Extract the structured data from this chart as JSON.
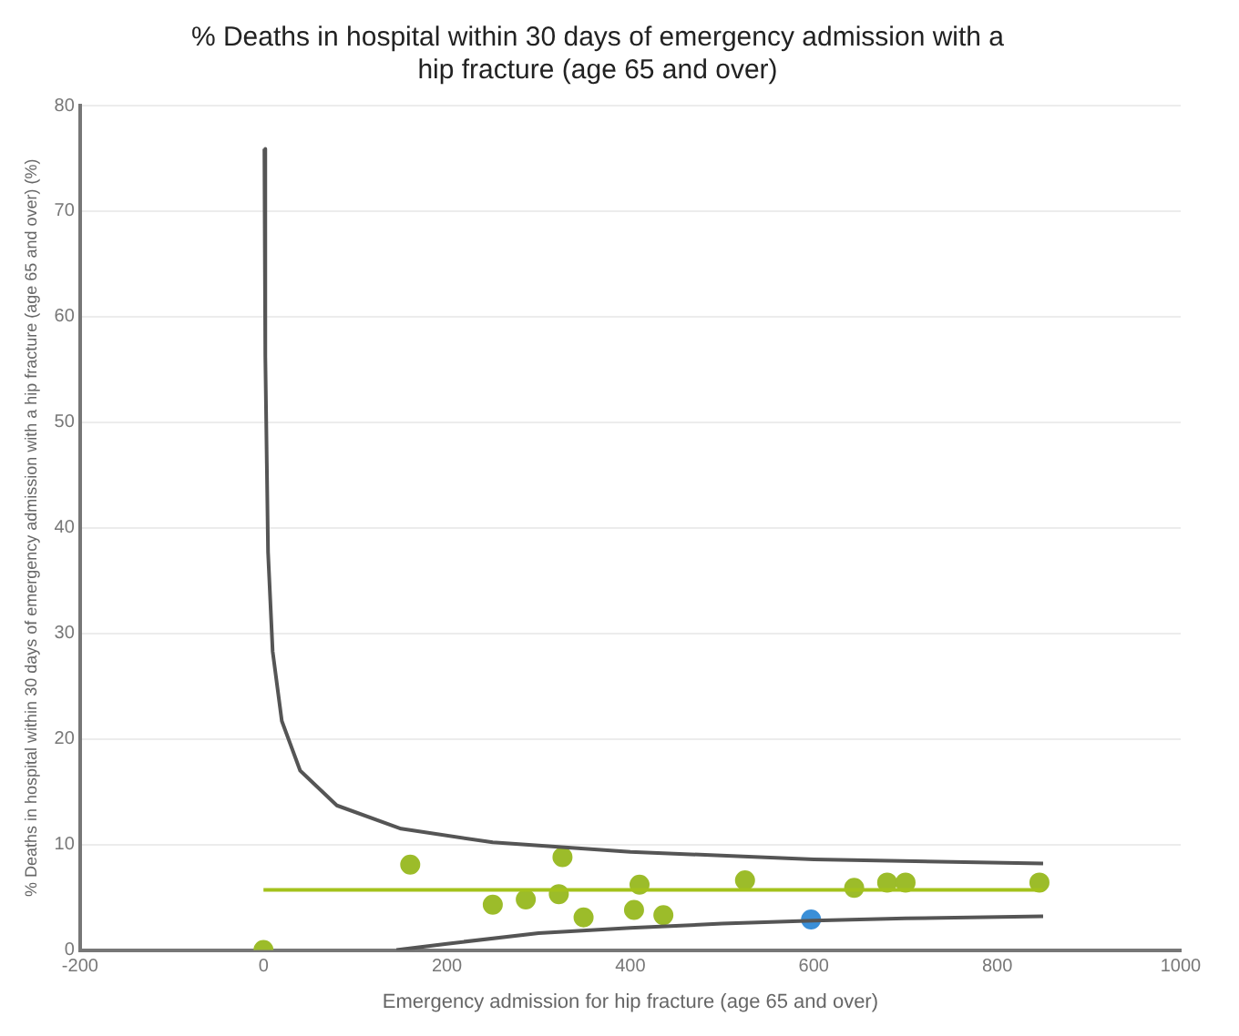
{
  "chart_data": {
    "type": "scatter",
    "title": "% Deaths in hospital within 30 days of emergency admission with a hip fracture (age 65 and over)",
    "xlabel": "Emergency admission for hip fracture (age 65 and over)",
    "ylabel": "% Deaths in hospital within 30 days of emergency admission with a hip fracture (age 65 and over) (%)",
    "xlim": [
      -200,
      1000
    ],
    "xticks": [
      -200,
      0,
      200,
      400,
      600,
      800,
      1000
    ],
    "ylim": [
      0,
      80
    ],
    "yticks": [
      0,
      10,
      20,
      30,
      40,
      50,
      60,
      70,
      80
    ],
    "grid": "y",
    "legend": false,
    "marker": "circle",
    "series": [
      {
        "type": "line",
        "color": "#555555",
        "marker": "none",
        "x": [
          1,
          2,
          5,
          10,
          20,
          40,
          80,
          150,
          250,
          400,
          600,
          850
        ],
        "values": [
          75.9,
          56.3,
          37.7,
          28.3,
          21.7,
          17.0,
          13.7,
          11.5,
          10.2,
          9.3,
          8.6,
          8.2
        ]
      },
      {
        "type": "line",
        "color": "#555555",
        "marker": "none",
        "x": [
          145,
          200,
          300,
          400,
          500,
          600,
          700,
          850
        ],
        "values": [
          0,
          0.6,
          1.6,
          2.1,
          2.5,
          2.8,
          3.0,
          3.2
        ]
      },
      {
        "type": "line",
        "color": "#a4c21c",
        "marker": "none",
        "x": [
          0,
          850
        ],
        "values": [
          5.7,
          5.7
        ]
      },
      {
        "color": "#9cbc2a",
        "x": [
          0,
          160,
          326,
          250,
          286,
          322,
          349,
          410,
          404,
          436,
          525,
          644,
          680,
          700,
          846
        ],
        "values": [
          0,
          8.1,
          8.8,
          4.3,
          4.8,
          5.3,
          3.1,
          6.2,
          3.8,
          3.3,
          6.6,
          5.9,
          6.4,
          6.4,
          6.4
        ]
      },
      {
        "color": "#3a8fd8",
        "x": [
          597
        ],
        "values": [
          2.9
        ]
      }
    ]
  }
}
